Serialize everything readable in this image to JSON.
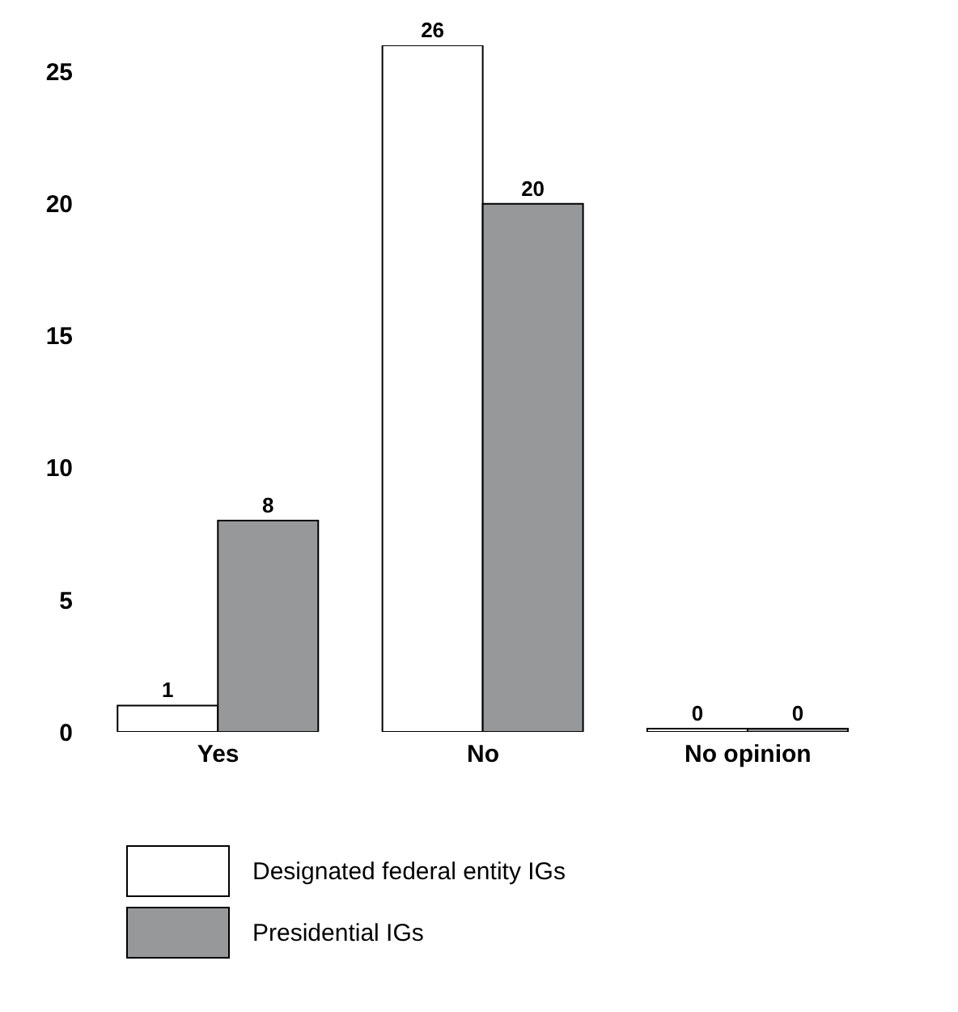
{
  "chart_data": {
    "type": "bar",
    "categories": [
      "Yes",
      "No",
      "No opinion"
    ],
    "series": [
      {
        "name": "Designated federal entity IGs",
        "color": "#ffffff",
        "values": [
          1,
          26,
          0
        ]
      },
      {
        "name": "Presidential IGs",
        "color": "#97989a",
        "values": [
          8,
          20,
          0
        ]
      }
    ],
    "ylim": [
      0,
      26
    ],
    "yticks": [
      0,
      5,
      10,
      15,
      20,
      25
    ],
    "data_labels": true,
    "grid": false,
    "legend": "bottom"
  }
}
